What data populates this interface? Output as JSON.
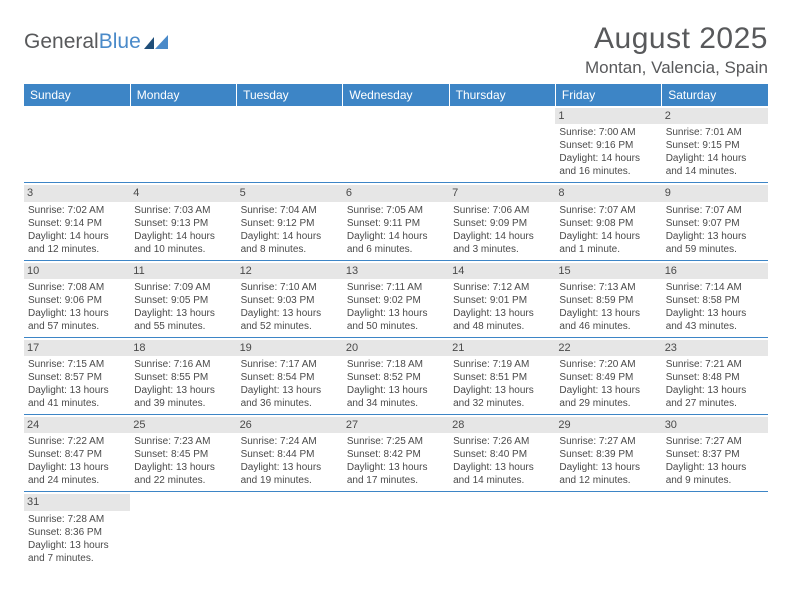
{
  "logo": {
    "text1": "General",
    "text2": "Blue"
  },
  "title": "August 2025",
  "location": "Montan, Valencia, Spain",
  "colors": {
    "header_bg": "#3d85c6",
    "header_text": "#ffffff",
    "daynum_bg": "#e6e6e6",
    "border": "#3d85c6",
    "text": "#4a4a4a",
    "logo_blue": "#4a8ac9"
  },
  "weekdays": [
    "Sunday",
    "Monday",
    "Tuesday",
    "Wednesday",
    "Thursday",
    "Friday",
    "Saturday"
  ],
  "weeks": [
    [
      null,
      null,
      null,
      null,
      null,
      {
        "n": "1",
        "sr": "Sunrise: 7:00 AM",
        "ss": "Sunset: 9:16 PM",
        "dl": "Daylight: 14 hours and 16 minutes."
      },
      {
        "n": "2",
        "sr": "Sunrise: 7:01 AM",
        "ss": "Sunset: 9:15 PM",
        "dl": "Daylight: 14 hours and 14 minutes."
      }
    ],
    [
      {
        "n": "3",
        "sr": "Sunrise: 7:02 AM",
        "ss": "Sunset: 9:14 PM",
        "dl": "Daylight: 14 hours and 12 minutes."
      },
      {
        "n": "4",
        "sr": "Sunrise: 7:03 AM",
        "ss": "Sunset: 9:13 PM",
        "dl": "Daylight: 14 hours and 10 minutes."
      },
      {
        "n": "5",
        "sr": "Sunrise: 7:04 AM",
        "ss": "Sunset: 9:12 PM",
        "dl": "Daylight: 14 hours and 8 minutes."
      },
      {
        "n": "6",
        "sr": "Sunrise: 7:05 AM",
        "ss": "Sunset: 9:11 PM",
        "dl": "Daylight: 14 hours and 6 minutes."
      },
      {
        "n": "7",
        "sr": "Sunrise: 7:06 AM",
        "ss": "Sunset: 9:09 PM",
        "dl": "Daylight: 14 hours and 3 minutes."
      },
      {
        "n": "8",
        "sr": "Sunrise: 7:07 AM",
        "ss": "Sunset: 9:08 PM",
        "dl": "Daylight: 14 hours and 1 minute."
      },
      {
        "n": "9",
        "sr": "Sunrise: 7:07 AM",
        "ss": "Sunset: 9:07 PM",
        "dl": "Daylight: 13 hours and 59 minutes."
      }
    ],
    [
      {
        "n": "10",
        "sr": "Sunrise: 7:08 AM",
        "ss": "Sunset: 9:06 PM",
        "dl": "Daylight: 13 hours and 57 minutes."
      },
      {
        "n": "11",
        "sr": "Sunrise: 7:09 AM",
        "ss": "Sunset: 9:05 PM",
        "dl": "Daylight: 13 hours and 55 minutes."
      },
      {
        "n": "12",
        "sr": "Sunrise: 7:10 AM",
        "ss": "Sunset: 9:03 PM",
        "dl": "Daylight: 13 hours and 52 minutes."
      },
      {
        "n": "13",
        "sr": "Sunrise: 7:11 AM",
        "ss": "Sunset: 9:02 PM",
        "dl": "Daylight: 13 hours and 50 minutes."
      },
      {
        "n": "14",
        "sr": "Sunrise: 7:12 AM",
        "ss": "Sunset: 9:01 PM",
        "dl": "Daylight: 13 hours and 48 minutes."
      },
      {
        "n": "15",
        "sr": "Sunrise: 7:13 AM",
        "ss": "Sunset: 8:59 PM",
        "dl": "Daylight: 13 hours and 46 minutes."
      },
      {
        "n": "16",
        "sr": "Sunrise: 7:14 AM",
        "ss": "Sunset: 8:58 PM",
        "dl": "Daylight: 13 hours and 43 minutes."
      }
    ],
    [
      {
        "n": "17",
        "sr": "Sunrise: 7:15 AM",
        "ss": "Sunset: 8:57 PM",
        "dl": "Daylight: 13 hours and 41 minutes."
      },
      {
        "n": "18",
        "sr": "Sunrise: 7:16 AM",
        "ss": "Sunset: 8:55 PM",
        "dl": "Daylight: 13 hours and 39 minutes."
      },
      {
        "n": "19",
        "sr": "Sunrise: 7:17 AM",
        "ss": "Sunset: 8:54 PM",
        "dl": "Daylight: 13 hours and 36 minutes."
      },
      {
        "n": "20",
        "sr": "Sunrise: 7:18 AM",
        "ss": "Sunset: 8:52 PM",
        "dl": "Daylight: 13 hours and 34 minutes."
      },
      {
        "n": "21",
        "sr": "Sunrise: 7:19 AM",
        "ss": "Sunset: 8:51 PM",
        "dl": "Daylight: 13 hours and 32 minutes."
      },
      {
        "n": "22",
        "sr": "Sunrise: 7:20 AM",
        "ss": "Sunset: 8:49 PM",
        "dl": "Daylight: 13 hours and 29 minutes."
      },
      {
        "n": "23",
        "sr": "Sunrise: 7:21 AM",
        "ss": "Sunset: 8:48 PM",
        "dl": "Daylight: 13 hours and 27 minutes."
      }
    ],
    [
      {
        "n": "24",
        "sr": "Sunrise: 7:22 AM",
        "ss": "Sunset: 8:47 PM",
        "dl": "Daylight: 13 hours and 24 minutes."
      },
      {
        "n": "25",
        "sr": "Sunrise: 7:23 AM",
        "ss": "Sunset: 8:45 PM",
        "dl": "Daylight: 13 hours and 22 minutes."
      },
      {
        "n": "26",
        "sr": "Sunrise: 7:24 AM",
        "ss": "Sunset: 8:44 PM",
        "dl": "Daylight: 13 hours and 19 minutes."
      },
      {
        "n": "27",
        "sr": "Sunrise: 7:25 AM",
        "ss": "Sunset: 8:42 PM",
        "dl": "Daylight: 13 hours and 17 minutes."
      },
      {
        "n": "28",
        "sr": "Sunrise: 7:26 AM",
        "ss": "Sunset: 8:40 PM",
        "dl": "Daylight: 13 hours and 14 minutes."
      },
      {
        "n": "29",
        "sr": "Sunrise: 7:27 AM",
        "ss": "Sunset: 8:39 PM",
        "dl": "Daylight: 13 hours and 12 minutes."
      },
      {
        "n": "30",
        "sr": "Sunrise: 7:27 AM",
        "ss": "Sunset: 8:37 PM",
        "dl": "Daylight: 13 hours and 9 minutes."
      }
    ],
    [
      {
        "n": "31",
        "sr": "Sunrise: 7:28 AM",
        "ss": "Sunset: 8:36 PM",
        "dl": "Daylight: 13 hours and 7 minutes."
      },
      null,
      null,
      null,
      null,
      null,
      null
    ]
  ]
}
